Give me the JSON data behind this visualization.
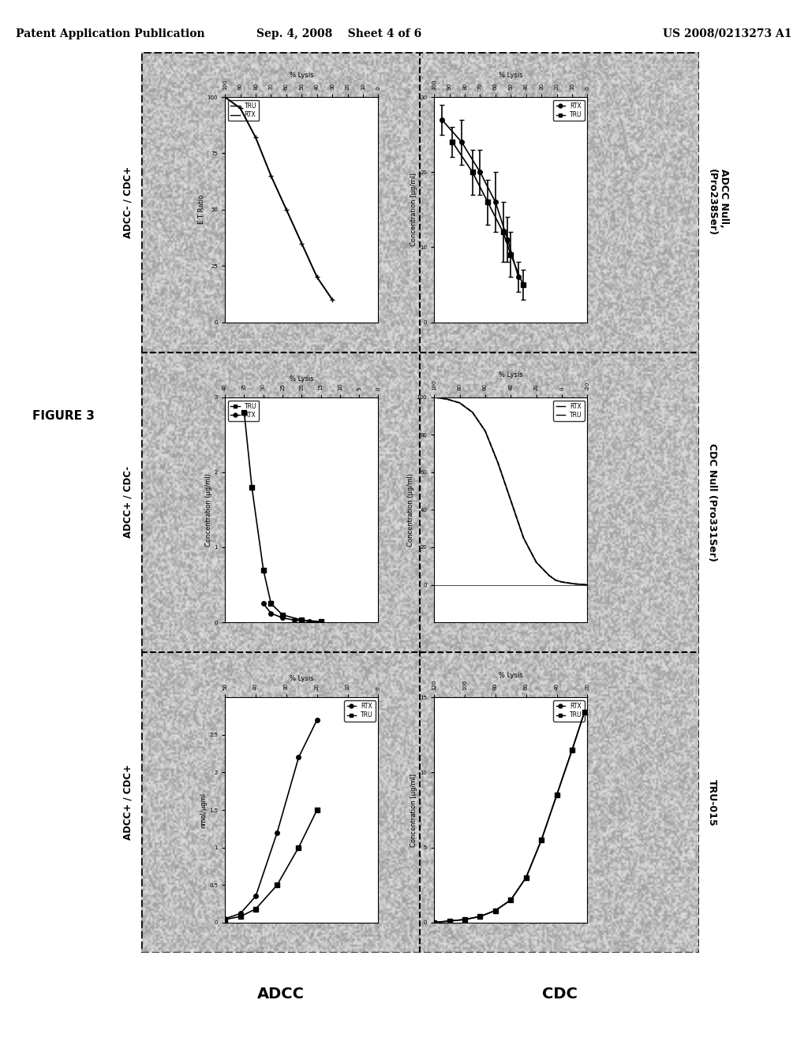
{
  "header_left": "Patent Application Publication",
  "header_mid": "Sep. 4, 2008    Sheet 4 of 6",
  "header_right": "US 2008/0213273 A1",
  "figure_label": "FIGURE 3",
  "bottom_left_label": "ADCC",
  "bottom_right_label": "CDC",
  "background_color": "#ffffff",
  "noise_color": "#b0b0b0",
  "row_titles_left": [
    "ADCC+ / CDC+",
    "ADCC+ / CDC-",
    "ADCC- / CDC+"
  ],
  "right_labels": [
    "TRU-015",
    "CDC Null (Pro331Ser)",
    "ADCC Null,\n(Pro238Ser)"
  ],
  "panels": {
    "r0_left": {
      "title": "ADCC+ / CDC+",
      "ylabel": "nmol/μgml",
      "ylim": [
        0,
        3
      ],
      "yticks": [
        0,
        0.5,
        1.0,
        1.5,
        2.0,
        2.5
      ],
      "xlabel": "% Lysis",
      "xlim": [
        0,
        50
      ],
      "xticks": [
        50,
        40,
        30,
        20,
        10,
        0
      ],
      "legend": [
        "RTX",
        "TRU"
      ],
      "legend_loc": "upper right",
      "rtx_x": [
        50,
        45,
        40,
        33,
        26,
        20
      ],
      "rtx_y": [
        0.05,
        0.12,
        0.35,
        1.2,
        2.2,
        2.7
      ],
      "tru_x": [
        50,
        45,
        40,
        33,
        26,
        20
      ],
      "tru_y": [
        0.04,
        0.08,
        0.18,
        0.5,
        1.0,
        1.5
      ]
    },
    "r0_right": {
      "title": "",
      "ylabel": "Concentration [μg/ml]",
      "ylim": [
        0,
        15
      ],
      "yticks": [
        0,
        5,
        10,
        15
      ],
      "xlabel": "% Lysis",
      "xlim": [
        20,
        120
      ],
      "xticks": [
        120,
        100,
        80,
        60,
        40,
        20
      ],
      "legend": [
        "RTX",
        "TRU"
      ],
      "legend_loc": "upper right",
      "rtx_x": [
        120,
        110,
        100,
        90,
        80,
        70,
        60,
        50,
        40,
        30,
        22
      ],
      "rtx_y": [
        0.0,
        0.1,
        0.2,
        0.4,
        0.8,
        1.5,
        3.0,
        5.5,
        8.5,
        11.5,
        14.0
      ],
      "tru_x": [
        120,
        110,
        100,
        90,
        80,
        70,
        60,
        50,
        40,
        30,
        22
      ],
      "tru_y": [
        0.0,
        0.1,
        0.2,
        0.4,
        0.8,
        1.5,
        3.0,
        5.5,
        8.5,
        11.5,
        14.0
      ]
    },
    "r1_left": {
      "title": "ADCC+ / CDC-",
      "ylabel": "Concentration (μg/ml)",
      "ylim": [
        0,
        3
      ],
      "yticks": [
        0,
        1,
        2,
        3
      ],
      "xlabel": "% Lysis",
      "xlim": [
        0,
        40
      ],
      "xticks": [
        40,
        35,
        30,
        25,
        20,
        15,
        10,
        5,
        0
      ],
      "legend": [
        "TRU",
        "RTX"
      ],
      "legend_loc": "upper left",
      "tru_x": [
        35,
        33,
        30,
        28,
        25,
        20,
        15
      ],
      "tru_y": [
        2.8,
        1.8,
        0.7,
        0.25,
        0.1,
        0.03,
        0.01
      ],
      "rtx_x": [
        30,
        28,
        25,
        22,
        18,
        15
      ],
      "rtx_y": [
        0.25,
        0.12,
        0.06,
        0.03,
        0.015,
        0.005
      ]
    },
    "r1_right": {
      "title": "",
      "ylabel": "Concentration (μg/ml)",
      "ylim": [
        -20,
        100
      ],
      "yticks": [
        0,
        20,
        40,
        60,
        80,
        100
      ],
      "xlabel": "% Lysis",
      "xlim": [
        -20,
        100
      ],
      "xticks": [
        100,
        80,
        60,
        40,
        20,
        0,
        -20
      ],
      "legend": [
        "RTX",
        "TRU"
      ],
      "legend_loc": "upper right",
      "rtx_x": [
        100,
        90,
        80,
        70,
        60,
        50,
        40,
        30,
        20,
        10,
        5,
        0,
        -10,
        -20
      ],
      "rtx_y": [
        100,
        99,
        97,
        92,
        82,
        65,
        45,
        25,
        12,
        5,
        2.5,
        1.5,
        0.5,
        0.0
      ],
      "tru_x": [
        100,
        90,
        80,
        70,
        60,
        50,
        40,
        30,
        20,
        10,
        5,
        0,
        -10,
        -20
      ],
      "tru_y": [
        100,
        99,
        97,
        92,
        82,
        65,
        45,
        25,
        12,
        5,
        2.5,
        1.5,
        0.5,
        0.0
      ]
    },
    "r2_left": {
      "title": "ADCC- / CDC+",
      "ylabel": "E:T Ratio",
      "ylim": [
        0,
        100
      ],
      "yticks": [
        0,
        25,
        50,
        75,
        100
      ],
      "xlabel": "% Lysis",
      "xlim": [
        0,
        100
      ],
      "xticks": [
        100,
        90,
        80,
        70,
        60,
        50,
        40,
        30,
        20,
        10,
        0
      ],
      "legend": [
        "TRU",
        "RTX"
      ],
      "legend_loc": "upper left",
      "tru_x": [
        100,
        90,
        80,
        70,
        60,
        50,
        40,
        30
      ],
      "tru_y": [
        100,
        95,
        82,
        65,
        50,
        35,
        20,
        10
      ],
      "rtx_x": [
        100,
        90,
        80,
        70,
        60,
        50,
        40,
        30
      ],
      "rtx_y": [
        100,
        95,
        82,
        65,
        50,
        35,
        20,
        10
      ]
    },
    "r2_right": {
      "title": "",
      "ylabel": "Concentration [μg/ml]",
      "ylim": [
        0,
        30
      ],
      "yticks": [
        0,
        10,
        20,
        30
      ],
      "xlabel": "% Lysis",
      "xlim": [
        0,
        100
      ],
      "xticks": [
        100,
        90,
        80,
        70,
        60,
        50,
        40,
        30,
        20,
        10,
        0
      ],
      "legend": [
        "RTX",
        "TRU"
      ],
      "legend_loc": "upper right",
      "rtx_x": [
        95,
        82,
        70,
        60,
        52,
        45
      ],
      "rtx_y": [
        27,
        24,
        20,
        16,
        11,
        6
      ],
      "rtx_err": [
        2,
        3,
        3,
        4,
        3,
        2
      ],
      "tru_x": [
        88,
        75,
        65,
        55,
        50,
        42
      ],
      "tru_y": [
        24,
        20,
        16,
        12,
        9,
        5
      ],
      "tru_err": [
        2,
        3,
        3,
        4,
        3,
        2
      ]
    }
  }
}
